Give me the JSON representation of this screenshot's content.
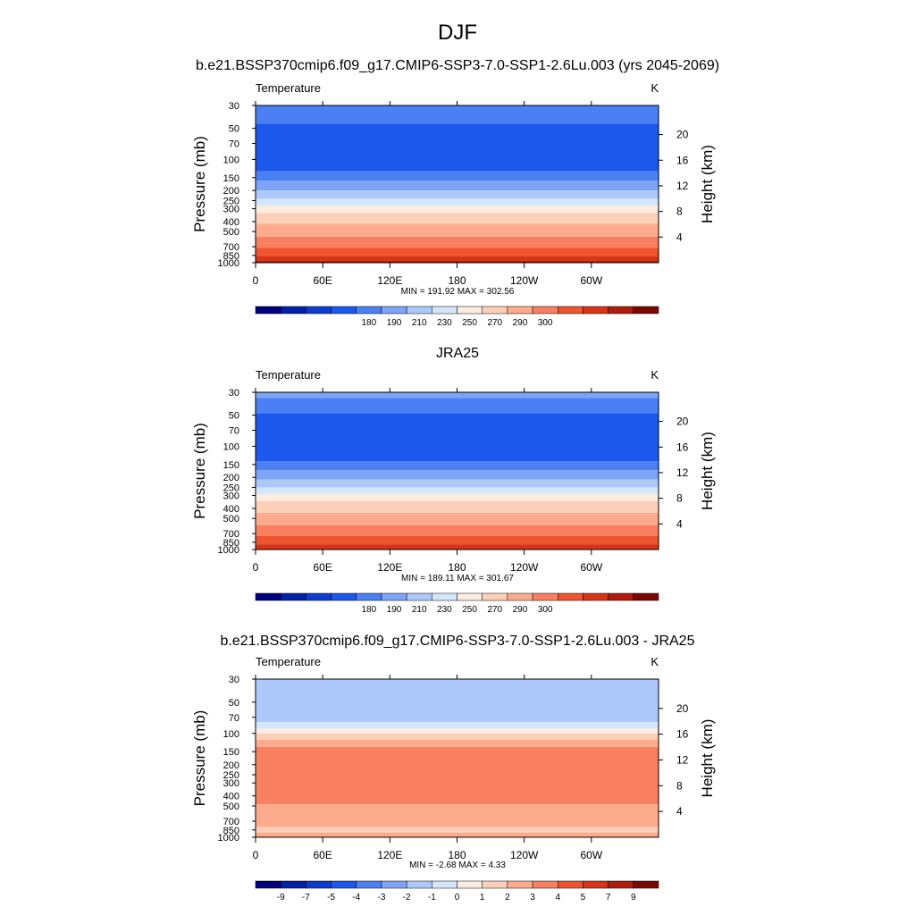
{
  "figure": {
    "title": "DJF",
    "subtitle": "b.e21.BSSP370cmip6.f09_g17.CMIP6-SSP3-7.0-SSP1-2.6Lu.003 (yrs 2045-2069)"
  },
  "chart_data": [
    {
      "type": "heatmap",
      "title": "",
      "left_label": "Temperature",
      "right_label": "K",
      "ylabel": "Pressure (mb)",
      "ylabel_right": "Height (km)",
      "x_ticks": [
        "0",
        "60E",
        "120E",
        "180",
        "120W",
        "60W"
      ],
      "y_ticks": [
        "30",
        "50",
        "70",
        "100",
        "150",
        "200",
        "250",
        "300",
        "400",
        "500",
        "700",
        "850",
        "1000"
      ],
      "height_ticks": [
        "20",
        "16",
        "12",
        "8",
        "4"
      ],
      "minmax_text": "MIN = 191.92  MAX = 302.56",
      "colorbar_labels": [
        "180",
        "190",
        "210",
        "230",
        "250",
        "270",
        "290",
        "300"
      ],
      "colors": [
        "#00007e",
        "#0020a8",
        "#0c3cd0",
        "#1c58ec",
        "#4a80f4",
        "#7ea4f8",
        "#adc8fa",
        "#d4e6fc",
        "#fcece0",
        "#fcd0b8",
        "#fcac8c",
        "#f88060",
        "#ee5430",
        "#d83418",
        "#b01c0c",
        "#7c0804"
      ],
      "layer_bands": [
        {
          "pressure": 30,
          "color_index": 4
        },
        {
          "pressure": 45,
          "color_index": 3
        },
        {
          "pressure": 130,
          "color_index": 4
        },
        {
          "pressure": 160,
          "color_index": 5
        },
        {
          "pressure": 200,
          "color_index": 6
        },
        {
          "pressure": 240,
          "color_index": 7
        },
        {
          "pressure": 280,
          "color_index": 8
        },
        {
          "pressure": 330,
          "color_index": 9
        },
        {
          "pressure": 420,
          "color_index": 10
        },
        {
          "pressure": 560,
          "color_index": 11
        },
        {
          "pressure": 720,
          "color_index": 12
        },
        {
          "pressure": 870,
          "color_index": 13
        },
        {
          "pressure": 960,
          "color_index": 14
        }
      ]
    },
    {
      "type": "heatmap",
      "title": "JRA25",
      "left_label": "Temperature",
      "right_label": "K",
      "ylabel": "Pressure (mb)",
      "ylabel_right": "Height (km)",
      "x_ticks": [
        "0",
        "60E",
        "120E",
        "180",
        "120W",
        "60W"
      ],
      "y_ticks": [
        "30",
        "50",
        "70",
        "100",
        "150",
        "200",
        "250",
        "300",
        "400",
        "500",
        "700",
        "850",
        "1000"
      ],
      "height_ticks": [
        "20",
        "16",
        "12",
        "8",
        "4"
      ],
      "minmax_text": "MIN = 189.11  MAX = 301.67",
      "colorbar_labels": [
        "180",
        "190",
        "210",
        "230",
        "250",
        "270",
        "290",
        "300"
      ],
      "colors": [
        "#00007e",
        "#0020a8",
        "#0c3cd0",
        "#1c58ec",
        "#4a80f4",
        "#7ea4f8",
        "#adc8fa",
        "#d4e6fc",
        "#fcece0",
        "#fcd0b8",
        "#fcac8c",
        "#f88060",
        "#ee5430",
        "#d83418",
        "#b01c0c",
        "#7c0804"
      ],
      "layer_bands": [
        {
          "pressure": 30,
          "color_index": 5
        },
        {
          "pressure": 34,
          "color_index": 4
        },
        {
          "pressure": 48,
          "color_index": 3
        },
        {
          "pressure": 140,
          "color_index": 4
        },
        {
          "pressure": 170,
          "color_index": 5
        },
        {
          "pressure": 210,
          "color_index": 6
        },
        {
          "pressure": 250,
          "color_index": 7
        },
        {
          "pressure": 290,
          "color_index": 8
        },
        {
          "pressure": 340,
          "color_index": 9
        },
        {
          "pressure": 440,
          "color_index": 10
        },
        {
          "pressure": 580,
          "color_index": 11
        },
        {
          "pressure": 740,
          "color_index": 12
        },
        {
          "pressure": 890,
          "color_index": 13
        }
      ]
    },
    {
      "type": "heatmap",
      "title": "b.e21.BSSP370cmip6.f09_g17.CMIP6-SSP3-7.0-SSP1-2.6Lu.003 - JRA25",
      "left_label": "Temperature",
      "right_label": "K",
      "ylabel": "Pressure (mb)",
      "ylabel_right": "Height (km)",
      "x_ticks": [
        "0",
        "60E",
        "120E",
        "180",
        "120W",
        "60W"
      ],
      "y_ticks": [
        "30",
        "50",
        "70",
        "100",
        "150",
        "200",
        "250",
        "300",
        "400",
        "500",
        "700",
        "850",
        "1000"
      ],
      "height_ticks": [
        "20",
        "16",
        "12",
        "8",
        "4"
      ],
      "minmax_text": "MIN =  -2.68  MAX =   4.33",
      "colorbar_labels": [
        "-9",
        "-7",
        "-5",
        "-4",
        "-3",
        "-2",
        "-1",
        "0",
        "1",
        "2",
        "3",
        "4",
        "5",
        "7",
        "9"
      ],
      "colors": [
        "#00007e",
        "#0020a8",
        "#0c3cd0",
        "#1c58ec",
        "#4a80f4",
        "#7ea4f8",
        "#adc8fa",
        "#d4e6fc",
        "#fcece0",
        "#fcd0b8",
        "#fcac8c",
        "#f88060",
        "#ee5430",
        "#d83418",
        "#b01c0c",
        "#7c0804"
      ],
      "layer_bands": [
        {
          "pressure": 30,
          "color_index": 6
        },
        {
          "pressure": 78,
          "color_index": 7
        },
        {
          "pressure": 90,
          "color_index": 8
        },
        {
          "pressure": 100,
          "color_index": 9
        },
        {
          "pressure": 115,
          "color_index": 10
        },
        {
          "pressure": 135,
          "color_index": 11
        },
        {
          "pressure": 480,
          "color_index": 10
        },
        {
          "pressure": 800,
          "color_index": 9
        },
        {
          "pressure": 900,
          "color_index": 10
        }
      ]
    }
  ]
}
